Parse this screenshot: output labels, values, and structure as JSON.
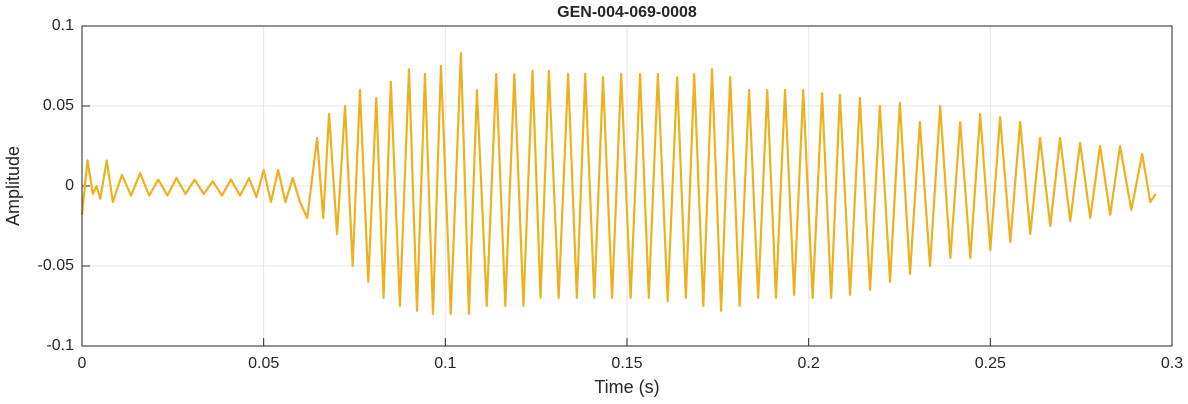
{
  "chart_data": {
    "type": "line",
    "title": "GEN-004-069-0008",
    "x_label": "Time (s)",
    "y_label": "Amplitude",
    "x": [
      0,
      0.0015,
      0.003,
      0.004,
      0.005,
      0.0068,
      0.0085,
      0.011,
      0.0135,
      0.016,
      0.0185,
      0.021,
      0.0235,
      0.026,
      0.0285,
      0.031,
      0.0335,
      0.036,
      0.0385,
      0.041,
      0.0435,
      0.046,
      0.048,
      0.05,
      0.052,
      0.054,
      0.056,
      0.058,
      0.06,
      0.062,
      0.0647,
      0.0664,
      0.068,
      0.0702,
      0.0724,
      0.0745,
      0.0765,
      0.0788,
      0.081,
      0.083,
      0.085,
      0.0875,
      0.09,
      0.0922,
      0.0944,
      0.0966,
      0.0988,
      0.1015,
      0.1043,
      0.1065,
      0.1087,
      0.1114,
      0.114,
      0.1165,
      0.119,
      0.1215,
      0.124,
      0.1262,
      0.1285,
      0.1312,
      0.1338,
      0.1362,
      0.1385,
      0.141,
      0.1434,
      0.1459,
      0.1484,
      0.151,
      0.1536,
      0.156,
      0.1585,
      0.1612,
      0.1638,
      0.1662,
      0.1685,
      0.171,
      0.1734,
      0.1759,
      0.1784,
      0.181,
      0.1836,
      0.1861,
      0.1886,
      0.191,
      0.1935,
      0.196,
      0.1985,
      0.2011,
      0.2037,
      0.2062,
      0.2086,
      0.2114,
      0.2141,
      0.2169,
      0.2196,
      0.2224,
      0.2251,
      0.2279,
      0.2306,
      0.2334,
      0.2362,
      0.239,
      0.2417,
      0.2445,
      0.2472,
      0.25,
      0.2527,
      0.2555,
      0.2582,
      0.261,
      0.2637,
      0.2665,
      0.2692,
      0.272,
      0.2747,
      0.2775,
      0.2802,
      0.283,
      0.2857,
      0.2888,
      0.2918,
      0.294,
      0.2955
    ],
    "series": [
      {
        "name": "Amplitude",
        "color": "#EDB120",
        "values": [
          -0.018,
          0.016,
          -0.005,
          0,
          -0.008,
          0.016,
          -0.01,
          0.007,
          -0.006,
          0.008,
          -0.006,
          0.004,
          -0.006,
          0.005,
          -0.005,
          0.004,
          -0.005,
          0.003,
          -0.006,
          0.004,
          -0.006,
          0.005,
          -0.007,
          0.01,
          -0.01,
          0.01,
          -0.01,
          0.005,
          -0.01,
          -0.02,
          0.03,
          -0.02,
          0.045,
          -0.03,
          0.05,
          -0.05,
          0.06,
          -0.06,
          0.055,
          -0.07,
          0.065,
          -0.075,
          0.073,
          -0.078,
          0.07,
          -0.08,
          0.075,
          -0.08,
          0.083,
          -0.08,
          0.06,
          -0.075,
          0.07,
          -0.075,
          0.07,
          -0.075,
          0.072,
          -0.07,
          0.072,
          -0.07,
          0.07,
          -0.07,
          0.07,
          -0.07,
          0.068,
          -0.07,
          0.07,
          -0.07,
          0.07,
          -0.07,
          0.07,
          -0.072,
          0.068,
          -0.07,
          0.07,
          -0.075,
          0.073,
          -0.078,
          0.068,
          -0.075,
          0.06,
          -0.07,
          0.06,
          -0.07,
          0.06,
          -0.068,
          0.06,
          -0.07,
          0.058,
          -0.07,
          0.057,
          -0.068,
          0.055,
          -0.065,
          0.05,
          -0.06,
          0.052,
          -0.055,
          0.04,
          -0.05,
          0.05,
          -0.045,
          0.04,
          -0.045,
          0.045,
          -0.04,
          0.043,
          -0.035,
          0.04,
          -0.03,
          0.03,
          -0.025,
          0.03,
          -0.022,
          0.027,
          -0.02,
          0.025,
          -0.018,
          0.025,
          -0.015,
          0.02,
          -0.01,
          -0.005
        ]
      }
    ],
    "xlim": [
      0,
      0.3
    ],
    "ylim": [
      -0.1,
      0.1
    ],
    "xticks": [
      0,
      0.05,
      0.1,
      0.15,
      0.2,
      0.25,
      0.3
    ],
    "yticks": [
      -0.1,
      -0.05,
      0,
      0.05,
      0.1
    ],
    "grid": true
  }
}
